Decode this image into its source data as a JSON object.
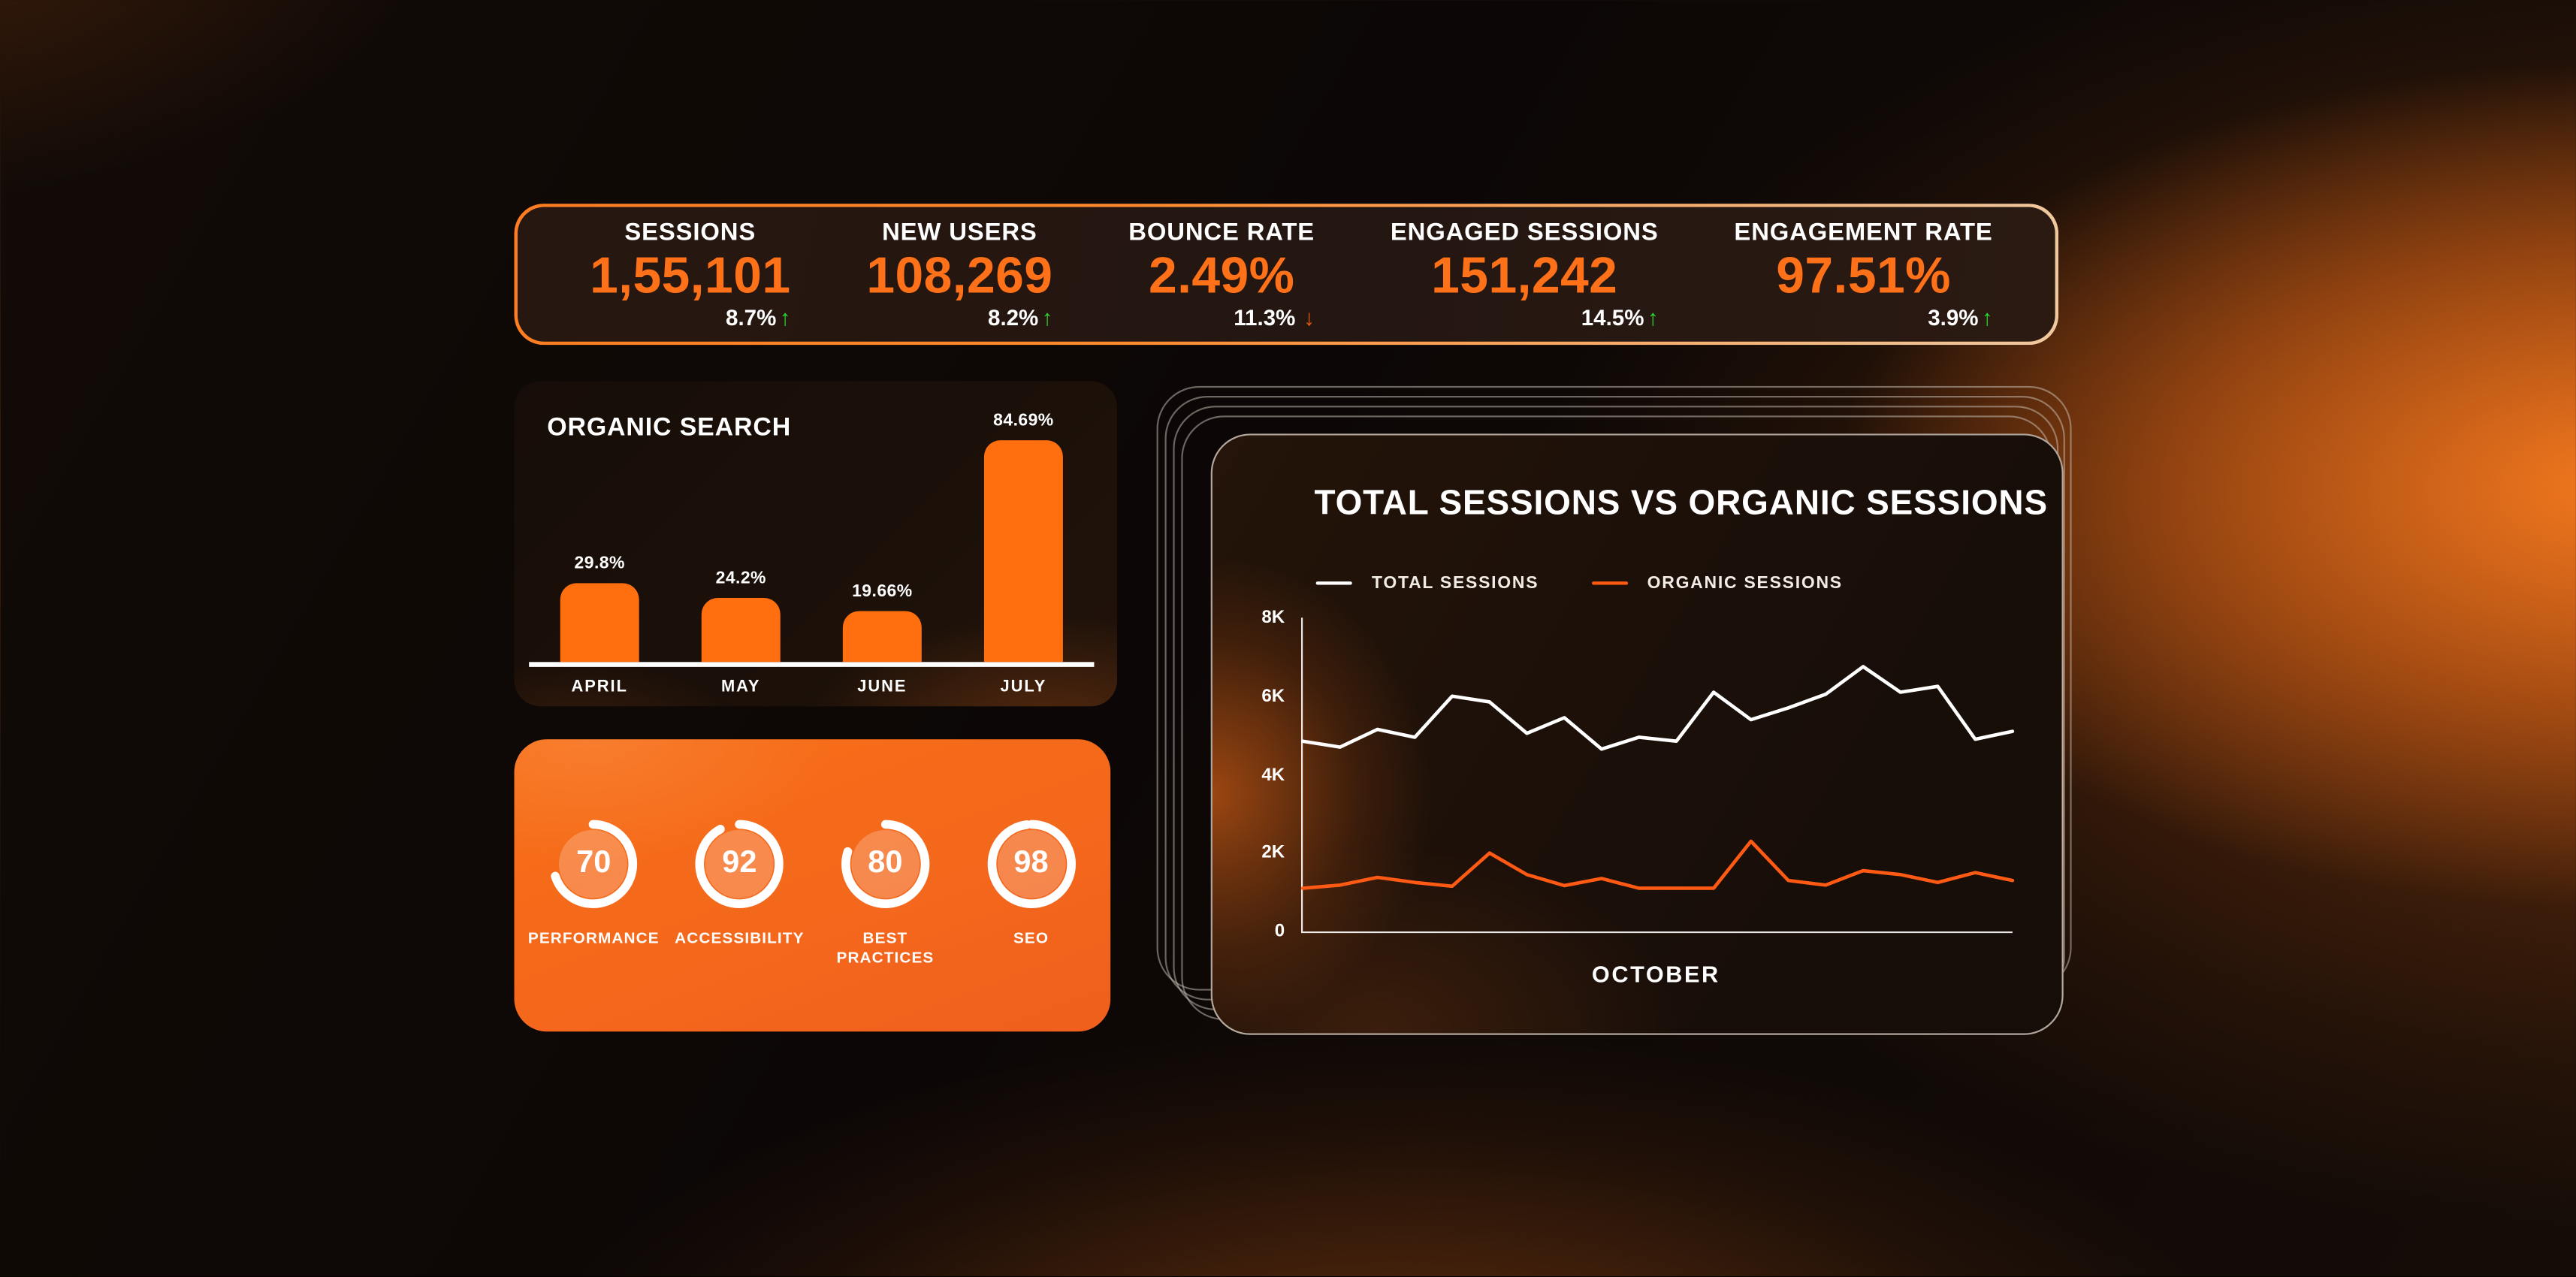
{
  "colors": {
    "accent": "#ff7119",
    "positive": "#2fd32f",
    "negative": "#e55a0e",
    "bar": "#ff6f0f",
    "card_orange": "#f4671c",
    "ring": "#ffffff"
  },
  "kpis": [
    {
      "label": "SESSIONS",
      "value": "1,55,101",
      "delta": "8.7%",
      "arrow": "↑",
      "direction": "up"
    },
    {
      "label": "NEW USERS",
      "value": "108,269",
      "delta": "8.2%",
      "arrow": "↑",
      "direction": "up"
    },
    {
      "label": "BOUNCE RATE",
      "value": "2.49%",
      "delta": "11.3%",
      "arrow": "↓",
      "direction": "down"
    },
    {
      "label": "ENGAGED SESSIONS",
      "value": "151,242",
      "delta": "14.5%",
      "arrow": "↑",
      "direction": "up"
    },
    {
      "label": "ENGAGEMENT RATE",
      "value": "97.51%",
      "delta": "3.9%",
      "arrow": "↑",
      "direction": "up"
    }
  ],
  "chart_data": [
    {
      "id": "organic_search",
      "type": "bar",
      "title": "ORGANIC SEARCH",
      "categories": [
        "APRIL",
        "MAY",
        "JUNE",
        "JULY"
      ],
      "values": [
        29.8,
        24.2,
        19.66,
        84.69
      ],
      "value_labels": [
        "29.8%",
        "24.2%",
        "19.66%",
        "84.69%"
      ],
      "unit": "%",
      "ylim": [
        0,
        100
      ],
      "grid": false,
      "bar_color": "#ff6f0f"
    },
    {
      "id": "lighthouse_scores",
      "type": "gauge",
      "max": 100,
      "items": [
        {
          "label": "PERFORMANCE",
          "value": 70
        },
        {
          "label": "ACCESSIBILITY",
          "value": 92
        },
        {
          "label": "BEST PRACTICES",
          "value": 80
        },
        {
          "label": "SEO",
          "value": 98
        }
      ]
    },
    {
      "id": "sessions_line",
      "type": "line",
      "title": "TOTAL SESSIONS VS ORGANIC SESSIONS",
      "xlabel": "OCTOBER",
      "yticks_top_to_bottom": [
        "8K",
        "6K",
        "4K",
        "2K",
        "0"
      ],
      "ylim": [
        0,
        8000
      ],
      "grid": false,
      "legend_position": "top-left",
      "series": [
        {
          "name": "TOTAL SESSIONS",
          "color": "#ffffff",
          "values": [
            4850,
            4700,
            5150,
            4950,
            6000,
            5850,
            5050,
            5450,
            4650,
            4950,
            4850,
            6100,
            5400,
            5700,
            6050,
            6750,
            6100,
            6250,
            4900,
            5100
          ]
        },
        {
          "name": "ORGANIC SESSIONS",
          "color": "#ff5a14",
          "values": [
            1100,
            1180,
            1380,
            1250,
            1150,
            2000,
            1450,
            1170,
            1350,
            1100,
            1100,
            1100,
            2300,
            1300,
            1180,
            1550,
            1450,
            1250,
            1500,
            1300
          ]
        }
      ]
    }
  ]
}
